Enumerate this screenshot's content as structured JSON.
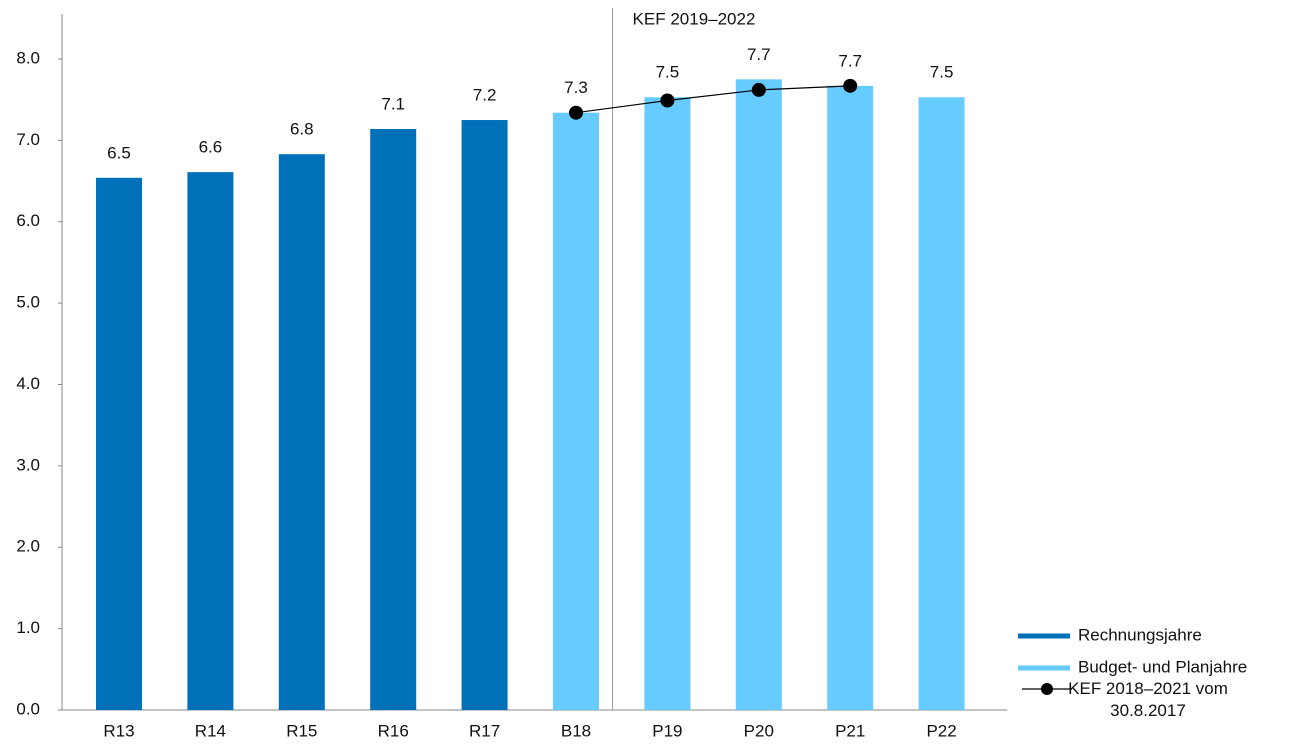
{
  "chart_data": {
    "type": "bar",
    "categories": [
      "R13",
      "R14",
      "R15",
      "R16",
      "R17",
      "B18",
      "P19",
      "P20",
      "P21",
      "P22"
    ],
    "series": [
      {
        "name": "Rechnungsjahre",
        "color": "#0070b8",
        "values": [
          6.54,
          6.61,
          6.83,
          7.14,
          7.25,
          null,
          null,
          null,
          null,
          null
        ],
        "value_labels": [
          "6.5",
          "6.6",
          "6.8",
          "7.1",
          "7.2",
          null,
          null,
          null,
          null,
          null
        ]
      },
      {
        "name": "Budget- und Planjahre",
        "color": "#66ccff",
        "values": [
          null,
          null,
          null,
          null,
          null,
          7.34,
          7.53,
          7.75,
          7.67,
          7.53
        ],
        "value_labels": [
          null,
          null,
          null,
          null,
          null,
          "7.3",
          "7.5",
          "7.7",
          "7.7",
          "7.5"
        ]
      },
      {
        "name": "KEF 2018–2021 vom 30.8.2017",
        "type": "line",
        "color": "#000000",
        "values": [
          null,
          null,
          null,
          null,
          null,
          7.34,
          7.49,
          7.62,
          7.67,
          null
        ]
      }
    ],
    "annotation": "KEF 2019–2022",
    "ylim": [
      0,
      8
    ],
    "yticks": [
      {
        "value": 0,
        "label": "0.0"
      },
      {
        "value": 1,
        "label": "1.0"
      },
      {
        "value": 2,
        "label": "2.0"
      },
      {
        "value": 3,
        "label": "3.0"
      },
      {
        "value": 4,
        "label": "4.0"
      },
      {
        "value": 5,
        "label": "5.0"
      },
      {
        "value": 6,
        "label": "6.0"
      },
      {
        "value": 7,
        "label": "7.0"
      },
      {
        "value": 8,
        "label": "8.0"
      }
    ],
    "grid": false,
    "legend": "lower right"
  }
}
